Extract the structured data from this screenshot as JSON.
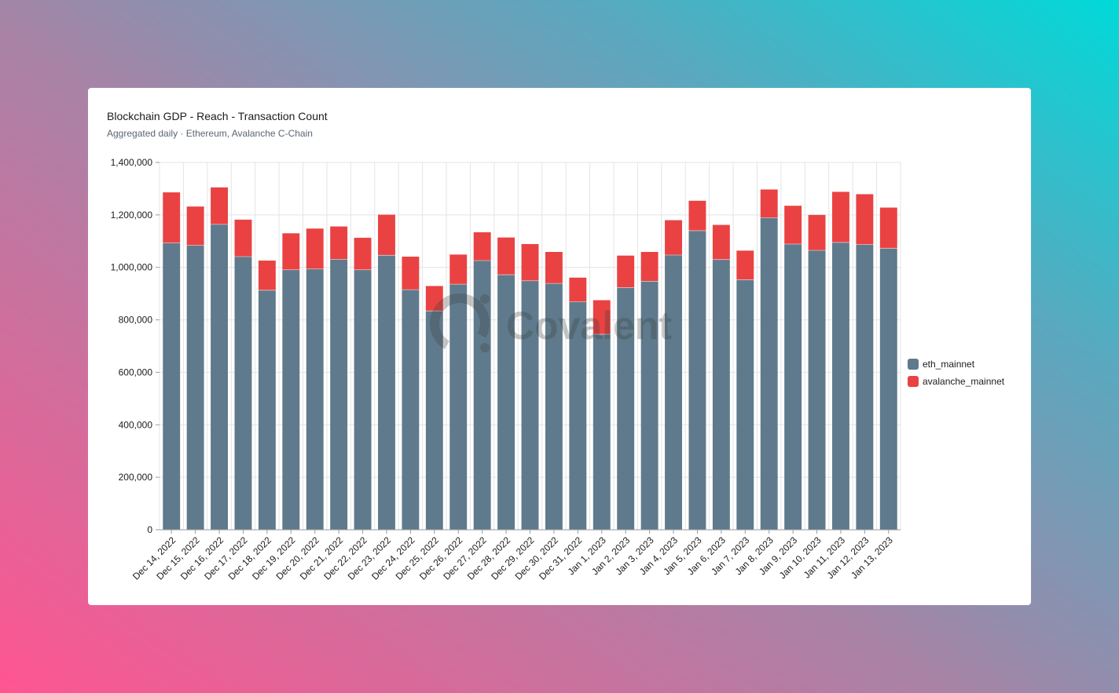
{
  "card": {
    "title": "Blockchain GDP - Reach - Transaction Count",
    "subtitle": "Aggregated daily · Ethereum, Avalanche C-Chain"
  },
  "watermark": {
    "text": "Covalent"
  },
  "chart_data": {
    "type": "bar",
    "stacked": true,
    "title": "Blockchain GDP - Reach - Transaction Count",
    "subtitle": "Aggregated daily · Ethereum, Avalanche C-Chain",
    "xlabel": "",
    "ylabel": "",
    "ylim": [
      0,
      1400000
    ],
    "yticks": [
      0,
      200000,
      400000,
      600000,
      800000,
      1000000,
      1200000,
      1400000
    ],
    "ytick_labels": [
      "0",
      "200,000",
      "400,000",
      "600,000",
      "800,000",
      "1,000,000",
      "1,200,000",
      "1,400,000"
    ],
    "grid": true,
    "legend_position": "right",
    "categories": [
      "Dec 14, 2022",
      "Dec 15, 2022",
      "Dec 16, 2022",
      "Dec 17, 2022",
      "Dec 18, 2022",
      "Dec 19, 2022",
      "Dec 20, 2022",
      "Dec 21, 2022",
      "Dec 22, 2022",
      "Dec 23, 2022",
      "Dec 24, 2022",
      "Dec 25, 2022",
      "Dec 26, 2022",
      "Dec 27, 2022",
      "Dec 28, 2022",
      "Dec 29, 2022",
      "Dec 30, 2022",
      "Dec 31, 2022",
      "Jan 1, 2023",
      "Jan 2, 2023",
      "Jan 3, 2023",
      "Jan 4, 2023",
      "Jan 5, 2023",
      "Jan 6, 2023",
      "Jan 7, 2023",
      "Jan 8, 2023",
      "Jan 9, 2023",
      "Jan 10, 2023",
      "Jan 11, 2023",
      "Jan 12, 2023",
      "Jan 13, 2023"
    ],
    "series": [
      {
        "name": "eth_mainnet",
        "color": "#5f7a8c",
        "values": [
          1093000,
          1084000,
          1164000,
          1041000,
          913000,
          991000,
          994000,
          1031000,
          991000,
          1046000,
          915000,
          834000,
          936000,
          1026000,
          972000,
          949000,
          939000,
          869000,
          745000,
          923000,
          947000,
          1047000,
          1140000,
          1030000,
          953000,
          1189000,
          1089000,
          1065000,
          1095000,
          1087000,
          1073000
        ]
      },
      {
        "name": "avalanche_mainnet",
        "color": "#ea4242",
        "values": [
          193000,
          148000,
          141000,
          141000,
          113000,
          139000,
          154000,
          125000,
          122000,
          155000,
          126000,
          95000,
          113000,
          108000,
          142000,
          140000,
          120000,
          92000,
          130000,
          122000,
          112000,
          133000,
          114000,
          132000,
          111000,
          108000,
          146000,
          135000,
          193000,
          192000,
          155000
        ]
      }
    ]
  }
}
